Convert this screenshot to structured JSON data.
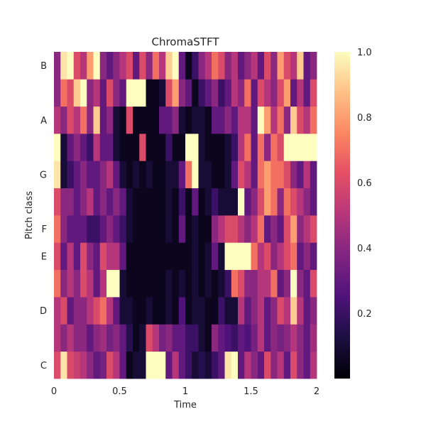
{
  "chart_data": {
    "type": "heatmap",
    "title": "ChromaSTFT",
    "xlabel": "Time",
    "ylabel": "Pitch class",
    "xlim": [
      0,
      2
    ],
    "x_ticks": [
      0,
      0.5,
      1,
      1.5,
      2
    ],
    "x_tick_labels": [
      "0",
      "0.5",
      "1",
      "1.5",
      "2"
    ],
    "pitch_classes": [
      "C",
      "C#",
      "D",
      "D#",
      "E",
      "F",
      "F#",
      "G",
      "G#",
      "A",
      "A#",
      "B"
    ],
    "y_tick_labels": [
      {
        "label": "C",
        "pitch": "C"
      },
      {
        "label": "D",
        "pitch": "D"
      },
      {
        "label": "E",
        "pitch": "E"
      },
      {
        "label": "F",
        "pitch": "F"
      },
      {
        "label": "G",
        "pitch": "G"
      },
      {
        "label": "A",
        "pitch": "A"
      },
      {
        "label": "B",
        "pitch": "B"
      }
    ],
    "colormap": "magma",
    "colorbar": {
      "vmin": 0,
      "vmax": 1,
      "ticks": [
        0.2,
        0.4,
        0.6,
        0.8,
        1.0
      ],
      "tick_labels": [
        "0.2",
        "0.4",
        "0.6",
        "0.8",
        "1.0"
      ]
    },
    "frames": 40,
    "grid": false,
    "values": [
      [
        0.6,
        0.95,
        0.6,
        0.55,
        0.5,
        0.4,
        0.3,
        0.35,
        0.6,
        0.5,
        0.3,
        0.05,
        0.1,
        0.1,
        1.0,
        1.0,
        1.0,
        0.3,
        0.5,
        0.3,
        0.2,
        0.1,
        0.15,
        0.1,
        0.2,
        0.3,
        0.95,
        1.0,
        0.3,
        0.5,
        0.4,
        0.3,
        0.6,
        0.4,
        0.5,
        0.3,
        0.6,
        0.4,
        0.3,
        0.5
      ],
      [
        0.5,
        0.4,
        0.5,
        0.4,
        0.4,
        0.3,
        0.4,
        0.45,
        0.35,
        0.4,
        0.3,
        0.15,
        0.05,
        0.1,
        0.6,
        0.5,
        0.35,
        0.4,
        0.3,
        0.3,
        0.2,
        0.2,
        0.1,
        0.05,
        0.4,
        0.3,
        0.25,
        0.2,
        0.3,
        0.25,
        0.35,
        0.5,
        0.3,
        0.4,
        0.35,
        0.4,
        0.5,
        0.4,
        0.3,
        0.45
      ],
      [
        0.5,
        0.6,
        0.3,
        0.4,
        0.4,
        0.5,
        0.6,
        0.7,
        0.5,
        0.3,
        0.1,
        0.1,
        0.05,
        0.05,
        0.1,
        0.05,
        0.05,
        0.1,
        0.05,
        0.25,
        0.05,
        0.1,
        0.1,
        0.05,
        0.05,
        0.2,
        0.1,
        0.1,
        0.5,
        0.3,
        0.4,
        0.5,
        0.3,
        0.4,
        0.6,
        0.5,
        0.9,
        0.5,
        0.3,
        0.4
      ],
      [
        0.7,
        0.4,
        0.5,
        0.4,
        0.6,
        0.5,
        0.3,
        0.5,
        1.0,
        1.0,
        0.1,
        0.05,
        0.05,
        0.05,
        0.05,
        0.05,
        0.05,
        0.1,
        0.05,
        0.1,
        0.05,
        0.1,
        0.05,
        0.1,
        0.05,
        0.1,
        0.2,
        0.7,
        0.6,
        0.4,
        0.4,
        0.5,
        0.5,
        0.7,
        0.3,
        0.4,
        1.0,
        0.4,
        0.3,
        0.6
      ],
      [
        0.6,
        0.3,
        0.5,
        0.3,
        0.6,
        0.4,
        0.3,
        0.6,
        0.5,
        0.5,
        0.3,
        0.05,
        0.05,
        0.05,
        0.05,
        0.05,
        0.05,
        0.05,
        0.05,
        0.05,
        0.05,
        0.1,
        0.05,
        0.1,
        0.3,
        0.1,
        1.0,
        1.0,
        1.0,
        1.0,
        0.7,
        0.5,
        0.6,
        0.4,
        0.5,
        0.6,
        0.7,
        0.3,
        0.4,
        0.3
      ],
      [
        0.7,
        0.4,
        0.3,
        0.3,
        0.3,
        0.2,
        0.2,
        0.3,
        0.4,
        0.3,
        0.2,
        0.1,
        0.05,
        0.05,
        0.05,
        0.05,
        0.05,
        0.1,
        0.05,
        0.3,
        0.05,
        0.1,
        0.05,
        0.05,
        0.4,
        0.5,
        0.6,
        0.6,
        0.5,
        0.4,
        0.5,
        0.7,
        0.3,
        0.4,
        0.3,
        0.6,
        0.8,
        0.4,
        0.5,
        0.6
      ],
      [
        0.6,
        0.4,
        0.4,
        0.3,
        0.4,
        0.5,
        0.3,
        0.4,
        0.3,
        0.4,
        0.3,
        0.1,
        0.05,
        0.05,
        0.05,
        0.05,
        0.05,
        0.1,
        0.05,
        0.2,
        0.05,
        0.3,
        0.05,
        0.1,
        0.2,
        0.1,
        0.1,
        0.1,
        1.0,
        0.3,
        0.4,
        0.6,
        0.8,
        0.7,
        0.4,
        0.7,
        0.6,
        0.5,
        0.4,
        0.3
      ],
      [
        0.95,
        0.1,
        0.2,
        0.3,
        0.4,
        0.3,
        0.3,
        0.4,
        0.5,
        0.3,
        0.1,
        0.05,
        0.1,
        0.05,
        0.1,
        0.05,
        0.05,
        0.1,
        0.1,
        0.3,
        0.7,
        1.0,
        0.1,
        0.1,
        0.05,
        0.05,
        0.1,
        0.3,
        0.6,
        0.5,
        0.3,
        0.7,
        0.8,
        0.7,
        0.7,
        0.6,
        0.4,
        0.3,
        0.5,
        0.3
      ],
      [
        1.0,
        0.1,
        0.3,
        0.4,
        0.3,
        0.2,
        0.5,
        0.3,
        0.3,
        0.1,
        0.05,
        0.05,
        0.05,
        0.6,
        0.05,
        0.05,
        0.05,
        0.2,
        0.05,
        0.05,
        1.0,
        1.0,
        0.1,
        0.05,
        0.05,
        0.05,
        0.1,
        0.2,
        0.5,
        0.7,
        0.3,
        0.7,
        0.4,
        0.7,
        0.6,
        1.0,
        1.0,
        1.0,
        1.0,
        1.0
      ],
      [
        0.5,
        0.4,
        0.6,
        0.5,
        0.7,
        0.4,
        0.9,
        0.3,
        0.4,
        0.1,
        0.05,
        0.6,
        0.05,
        0.05,
        0.05,
        0.05,
        0.3,
        0.3,
        0.4,
        0.1,
        0.05,
        0.1,
        0.1,
        0.05,
        0.3,
        0.3,
        0.4,
        0.3,
        0.5,
        0.5,
        0.3,
        1.0,
        0.8,
        0.5,
        0.7,
        0.4,
        0.9,
        0.6,
        0.5,
        0.7
      ],
      [
        0.4,
        0.7,
        0.6,
        0.9,
        1.0,
        0.4,
        0.5,
        0.3,
        0.6,
        0.4,
        0.3,
        1.0,
        1.0,
        1.0,
        0.05,
        0.05,
        0.1,
        0.6,
        0.8,
        0.4,
        0.3,
        0.05,
        0.2,
        0.3,
        0.4,
        0.2,
        0.3,
        0.5,
        0.4,
        0.7,
        0.3,
        0.6,
        0.5,
        0.4,
        0.6,
        0.8,
        0.3,
        0.5,
        0.3,
        0.6
      ],
      [
        0.4,
        0.95,
        1.0,
        0.6,
        0.5,
        0.8,
        1.0,
        0.4,
        0.3,
        0.4,
        0.5,
        0.6,
        0.3,
        0.6,
        0.4,
        0.7,
        0.5,
        0.9,
        1.0,
        0.3,
        0.05,
        0.2,
        0.4,
        0.5,
        0.7,
        0.6,
        0.4,
        0.5,
        0.3,
        0.4,
        0.5,
        0.3,
        0.6,
        0.4,
        0.8,
        0.6,
        0.5,
        0.9,
        0.3,
        0.4
      ]
    ]
  }
}
